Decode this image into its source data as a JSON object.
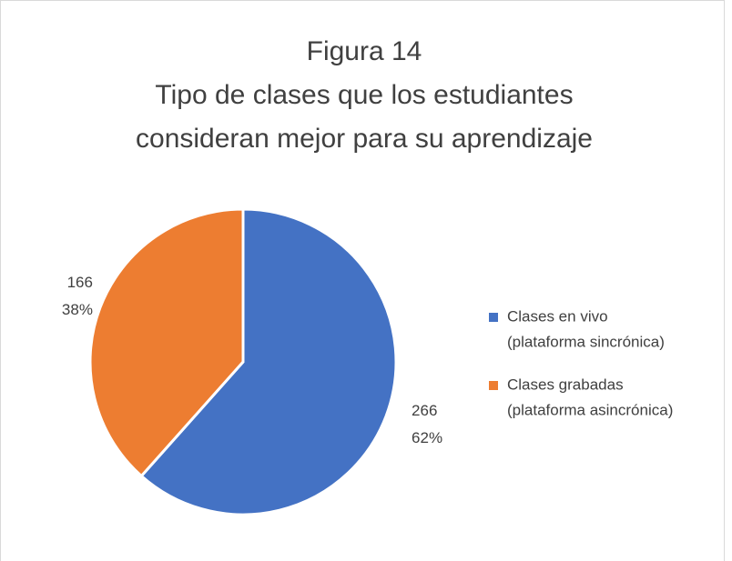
{
  "chart_data": {
    "type": "pie",
    "title": [
      "Figura 14",
      "Tipo de clases que los estudiantes",
      "consideran mejor para su aprendizaje"
    ],
    "series": [
      {
        "name": [
          "Clases en vivo",
          "(plataforma sincrónica)"
        ],
        "color": "#4472c4"
      },
      {
        "name": [
          "Clases grabadas",
          "(plataforma asincrónica)"
        ],
        "color": "#ed7d31"
      }
    ],
    "values": [
      266,
      166
    ],
    "percents": [
      62,
      38
    ],
    "percent_labels": [
      "62%",
      "38%"
    ],
    "legend": "right"
  }
}
